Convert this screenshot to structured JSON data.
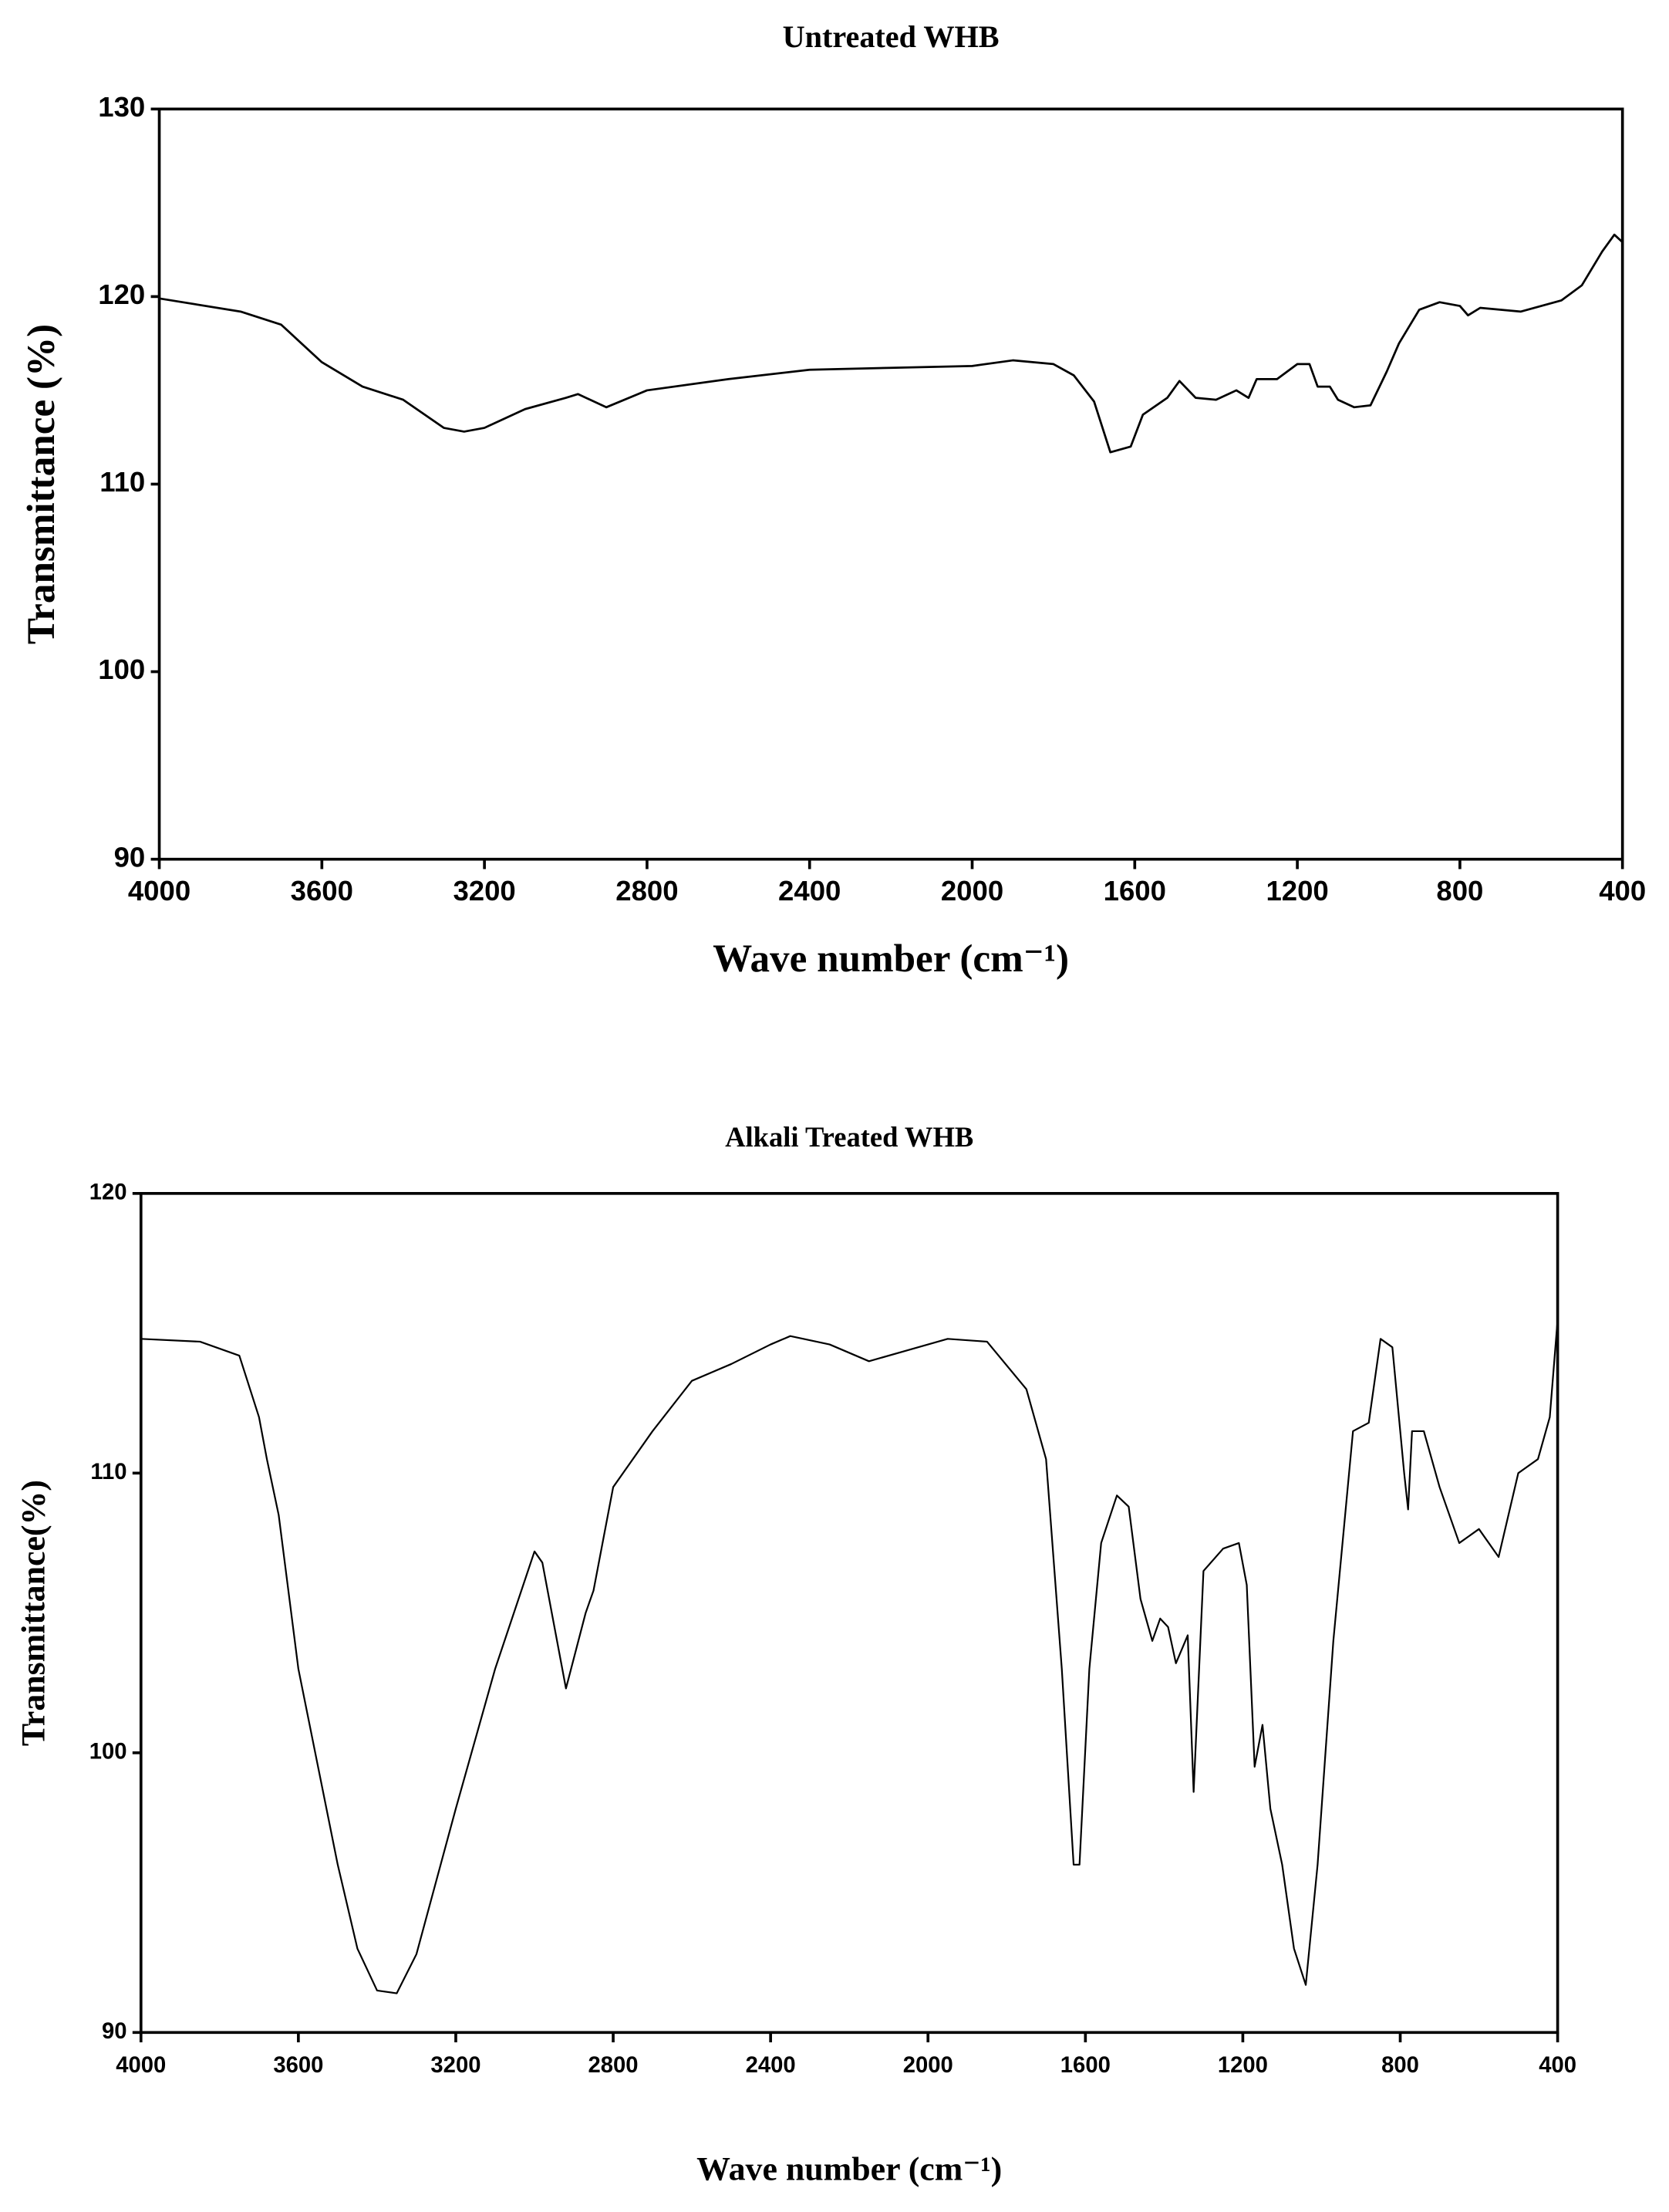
{
  "chart_data": [
    {
      "type": "line",
      "title": "Untreated WHB",
      "xlabel": "Wave number (cm⁻¹)",
      "ylabel": "Transmittance (%)",
      "x": [
        4000,
        3800,
        3700,
        3600,
        3500,
        3400,
        3300,
        3250,
        3200,
        3100,
        3000,
        2970,
        2900,
        2800,
        2600,
        2400,
        2200,
        2000,
        1900,
        1800,
        1750,
        1700,
        1660,
        1610,
        1580,
        1520,
        1490,
        1450,
        1400,
        1350,
        1320,
        1300,
        1250,
        1200,
        1170,
        1150,
        1120,
        1100,
        1060,
        1020,
        980,
        950,
        900,
        850,
        800,
        780,
        750,
        650,
        550,
        500,
        450,
        420,
        400
      ],
      "series": [
        {
          "color": "#000000",
          "values": [
            119.9,
            119.2,
            118.5,
            116.5,
            115.2,
            114.5,
            113.0,
            112.8,
            113.0,
            114.0,
            114.6,
            114.8,
            114.1,
            115.0,
            115.6,
            116.1,
            116.2,
            116.3,
            116.6,
            116.4,
            115.8,
            114.4,
            111.7,
            112.0,
            113.7,
            114.6,
            115.5,
            114.6,
            114.5,
            115.0,
            114.6,
            115.6,
            115.6,
            116.4,
            116.4,
            115.2,
            115.2,
            114.5,
            114.1,
            114.2,
            116.0,
            117.5,
            119.3,
            119.7,
            119.5,
            119.0,
            119.4,
            119.2,
            119.8,
            120.6,
            122.4,
            123.3,
            122.9
          ]
        }
      ],
      "xlim": [
        4000,
        400
      ],
      "xticks": [
        4000,
        3600,
        3200,
        2800,
        2400,
        2000,
        1600,
        1200,
        800,
        400
      ],
      "ylim": [
        90,
        130
      ],
      "yticks": [
        90,
        100,
        110,
        120,
        130
      ]
    },
    {
      "type": "line",
      "title": "Alkali Treated WHB",
      "xlabel": "Wave number (cm⁻¹)",
      "ylabel": "Transmittance(%)",
      "x": [
        4000,
        3850,
        3750,
        3700,
        3680,
        3650,
        3600,
        3500,
        3450,
        3400,
        3350,
        3300,
        3200,
        3100,
        3000,
        2980,
        2920,
        2870,
        2850,
        2800,
        2700,
        2600,
        2500,
        2400,
        2350,
        2250,
        2150,
        2050,
        1950,
        1850,
        1750,
        1700,
        1660,
        1630,
        1615,
        1590,
        1560,
        1520,
        1490,
        1460,
        1430,
        1410,
        1390,
        1370,
        1340,
        1325,
        1300,
        1250,
        1210,
        1190,
        1170,
        1150,
        1130,
        1100,
        1070,
        1040,
        1010,
        970,
        920,
        880,
        850,
        820,
        790,
        780,
        770,
        740,
        700,
        650,
        600,
        550,
        500,
        450,
        420,
        400
      ],
      "series": [
        {
          "color": "#000000",
          "values": [
            114.8,
            114.7,
            114.2,
            112,
            110.5,
            108.5,
            103,
            96,
            93,
            91.5,
            91.4,
            92.8,
            98,
            103,
            107.2,
            106.8,
            102.3,
            105,
            105.8,
            109.5,
            111.5,
            113.3,
            113.9,
            114.6,
            114.9,
            114.6,
            114.0,
            114.4,
            114.8,
            114.7,
            113,
            110.5,
            103,
            96,
            96,
            103,
            107.5,
            109.2,
            108.8,
            105.5,
            104,
            104.8,
            104.5,
            103.2,
            104.2,
            98.6,
            106.5,
            107.3,
            107.5,
            106,
            99.5,
            101,
            98,
            96,
            93,
            91.7,
            96,
            104,
            111.5,
            111.8,
            114.8,
            114.5,
            110,
            108.7,
            111.5,
            111.5,
            109.5,
            107.5,
            108,
            107,
            110,
            110.5,
            112,
            115.5
          ]
        }
      ],
      "xlim": [
        4000,
        400
      ],
      "xticks": [
        4000,
        3600,
        3200,
        2800,
        2400,
        2000,
        1600,
        1200,
        800,
        400
      ],
      "ylim": [
        90,
        120
      ],
      "yticks": [
        90,
        100,
        110,
        120
      ]
    }
  ]
}
